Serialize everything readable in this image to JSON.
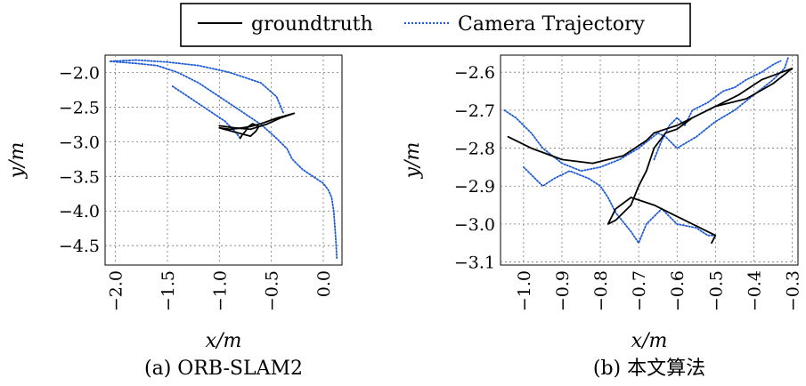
{
  "legend": {
    "items": [
      {
        "label": "groundtruth",
        "color": "#000000",
        "style": "solid"
      },
      {
        "label": "Camera Trajectory",
        "color": "#1f5bd6",
        "style": "dotted"
      }
    ]
  },
  "chart_data": [
    {
      "type": "line",
      "caption": "(a) ORB-SLAM2",
      "xlabel": "x/m",
      "ylabel": "y/m",
      "xlim": [
        -2.1,
        0.18
      ],
      "ylim": [
        -4.78,
        -1.75
      ],
      "xticks": [
        -2.0,
        -1.5,
        -1.0,
        -0.5,
        0.0
      ],
      "xticklabels": [
        "−2.0",
        "−1.5",
        "−1.0",
        "−0.5",
        "0.0"
      ],
      "yticks": [
        -2.0,
        -2.5,
        -3.0,
        -3.5,
        -4.0,
        -4.5
      ],
      "yticklabels": [
        "−2.0",
        "−2.5",
        "−3.0",
        "−3.5",
        "−4.0",
        "−4.5"
      ],
      "grid": true,
      "series": [
        {
          "name": "groundtruth",
          "color": "#000000",
          "style": "solid",
          "x": [
            -1.0,
            -0.85,
            -0.7,
            -0.55,
            -0.4,
            -0.28,
            -0.45,
            -0.6,
            -0.7,
            -0.78,
            -0.9,
            -1.0,
            -0.85,
            -0.7,
            -0.65,
            -0.62,
            -0.68,
            -0.72,
            -0.75,
            -0.78,
            -0.8
          ],
          "y": [
            -2.77,
            -2.8,
            -2.82,
            -2.75,
            -2.65,
            -2.59,
            -2.66,
            -2.74,
            -2.78,
            -2.8,
            -2.82,
            -2.8,
            -2.86,
            -2.92,
            -2.85,
            -2.78,
            -2.74,
            -2.78,
            -2.85,
            -2.9,
            -2.95
          ]
        },
        {
          "name": "Camera Trajectory",
          "color": "#1f5bd6",
          "style": "dotted",
          "x": [
            -2.05,
            -1.8,
            -1.6,
            -1.4,
            -1.2,
            -1.0,
            -0.8,
            -0.6,
            -0.45,
            -0.35,
            -0.3,
            -0.2,
            -0.1,
            0.0,
            0.05,
            0.08,
            0.1,
            0.12,
            0.13
          ],
          "y": [
            -1.84,
            -1.87,
            -1.9,
            -2.0,
            -2.15,
            -2.35,
            -2.55,
            -2.75,
            -2.95,
            -3.1,
            -3.25,
            -3.4,
            -3.5,
            -3.6,
            -3.7,
            -3.8,
            -4.0,
            -4.4,
            -4.68
          ]
        },
        {
          "name": "Camera Trajectory",
          "color": "#1f5bd6",
          "style": "dotted",
          "x": [
            -2.05,
            -1.8,
            -1.5,
            -1.2,
            -0.9,
            -0.6,
            -0.45,
            -0.38
          ],
          "y": [
            -1.84,
            -1.82,
            -1.85,
            -1.9,
            -2.0,
            -2.15,
            -2.35,
            -2.6
          ]
        },
        {
          "name": "Camera Trajectory",
          "color": "#1f5bd6",
          "style": "dotted",
          "x": [
            -1.45,
            -1.35,
            -1.25,
            -1.15,
            -1.05,
            -0.95,
            -0.85,
            -0.8
          ],
          "y": [
            -2.2,
            -2.3,
            -2.4,
            -2.5,
            -2.6,
            -2.7,
            -2.85,
            -2.95
          ]
        }
      ]
    },
    {
      "type": "line",
      "caption": "(b) 本文算法",
      "xlabel": "x/m",
      "ylabel": "y/m",
      "xlim": [
        -1.06,
        -0.285
      ],
      "ylim": [
        -3.108,
        -2.555
      ],
      "xticks": [
        -1.0,
        -0.9,
        -0.8,
        -0.7,
        -0.6,
        -0.5,
        -0.4,
        -0.3
      ],
      "xticklabels": [
        "−1.0",
        "−0.9",
        "−0.8",
        "−0.7",
        "−0.6",
        "−0.5",
        "−0.4",
        "−0.3"
      ],
      "yticks": [
        -2.6,
        -2.7,
        -2.8,
        -2.9,
        -3.0,
        -3.1
      ],
      "yticklabels": [
        "−2.6",
        "−2.7",
        "−2.8",
        "−2.9",
        "−3.0",
        "−3.1"
      ],
      "grid": true,
      "series": [
        {
          "name": "groundtruth",
          "color": "#000000",
          "style": "solid",
          "x": [
            -1.04,
            -0.98,
            -0.9,
            -0.82,
            -0.74,
            -0.68,
            -0.66,
            -0.63,
            -0.6,
            -0.52,
            -0.44,
            -0.38,
            -0.3,
            -0.35,
            -0.42,
            -0.5,
            -0.56,
            -0.6,
            -0.63,
            -0.66,
            -0.68,
            -0.7,
            -0.72,
            -0.76,
            -0.78,
            -0.76,
            -0.72,
            -0.66,
            -0.6,
            -0.52,
            -0.5,
            -0.51
          ],
          "y": [
            -2.77,
            -2.8,
            -2.83,
            -2.84,
            -2.82,
            -2.78,
            -2.76,
            -2.75,
            -2.74,
            -2.7,
            -2.66,
            -2.62,
            -2.59,
            -2.63,
            -2.67,
            -2.69,
            -2.72,
            -2.75,
            -2.76,
            -2.8,
            -2.86,
            -2.9,
            -2.95,
            -2.99,
            -3.0,
            -2.96,
            -2.93,
            -2.95,
            -2.98,
            -3.02,
            -3.03,
            -3.05
          ]
        },
        {
          "name": "Camera Trajectory",
          "color": "#1f5bd6",
          "style": "dotted",
          "x": [
            -1.05,
            -1.02,
            -0.98,
            -0.95,
            -0.9,
            -0.85,
            -0.8,
            -0.75,
            -0.7,
            -0.65,
            -0.63,
            -0.6,
            -0.55,
            -0.5,
            -0.45,
            -0.4,
            -0.35,
            -0.32,
            -0.31
          ],
          "y": [
            -2.7,
            -2.72,
            -2.76,
            -2.8,
            -2.84,
            -2.86,
            -2.85,
            -2.83,
            -2.8,
            -2.76,
            -2.77,
            -2.8,
            -2.77,
            -2.73,
            -2.7,
            -2.66,
            -2.62,
            -2.59,
            -2.56
          ]
        },
        {
          "name": "Camera Trajectory",
          "color": "#1f5bd6",
          "style": "dotted",
          "x": [
            -1.0,
            -0.97,
            -0.95,
            -0.92,
            -0.88,
            -0.83,
            -0.8,
            -0.78,
            -0.76,
            -0.72,
            -0.7,
            -0.68,
            -0.64,
            -0.62,
            -0.6,
            -0.55,
            -0.52,
            -0.5
          ],
          "y": [
            -2.85,
            -2.88,
            -2.9,
            -2.88,
            -2.86,
            -2.88,
            -2.9,
            -2.93,
            -2.97,
            -3.02,
            -3.05,
            -3.0,
            -2.96,
            -2.98,
            -3.0,
            -3.01,
            -3.03,
            -3.03
          ]
        },
        {
          "name": "Camera Trajectory",
          "color": "#1f5bd6",
          "style": "dotted",
          "x": [
            -0.66,
            -0.64,
            -0.62,
            -0.6,
            -0.58,
            -0.56,
            -0.52,
            -0.48,
            -0.45,
            -0.42,
            -0.38,
            -0.35,
            -0.33
          ],
          "y": [
            -2.83,
            -2.78,
            -2.74,
            -2.72,
            -2.74,
            -2.7,
            -2.68,
            -2.65,
            -2.64,
            -2.62,
            -2.6,
            -2.58,
            -2.57
          ]
        }
      ]
    }
  ]
}
